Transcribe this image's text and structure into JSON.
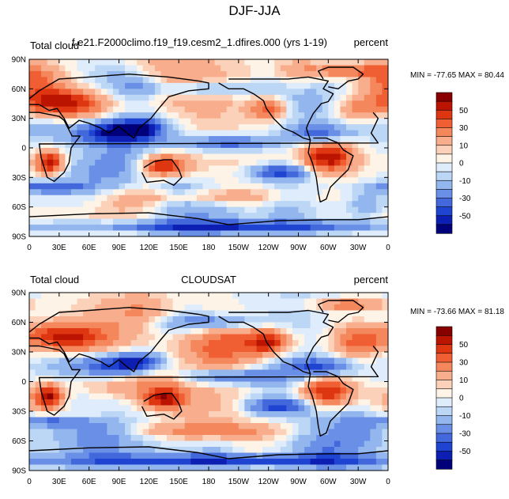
{
  "main_title": "DJF-JJA",
  "chart_data": [
    {
      "type": "heatmap",
      "left_title": "Total cloud",
      "center_title": "f.e21.F2000climo.f19_f19.cesm2_1.dfires.000 (yrs 1-19)",
      "right_title": "percent",
      "stats": "MIN = -77.65 MAX =  80.44",
      "lat_ticks": [
        "90N",
        "60N",
        "30N",
        "0",
        "30S",
        "60S",
        "90S"
      ],
      "lon_ticks": [
        "0",
        "30E",
        "60E",
        "90E",
        "120E",
        "150E",
        "180",
        "150W",
        "120W",
        "90W",
        "60W",
        "30W",
        "0"
      ],
      "colorbar_labels": [
        "50",
        "30",
        "10",
        "0",
        "-10",
        "-30",
        "-50"
      ],
      "lon_range": [
        0,
        360
      ],
      "lat_range": [
        -90,
        90
      ]
    },
    {
      "type": "heatmap",
      "left_title": "Total cloud",
      "center_title": "CLOUDSAT",
      "right_title": "percent",
      "stats": "MIN = -73.66 MAX =  81.18",
      "lat_ticks": [
        "90N",
        "60N",
        "30N",
        "0",
        "30S",
        "60S",
        "90S"
      ],
      "lon_ticks": [
        "0",
        "30E",
        "60E",
        "90E",
        "120E",
        "150E",
        "180",
        "150W",
        "120W",
        "90W",
        "60W",
        "30W",
        "0"
      ],
      "colorbar_labels": [
        "50",
        "30",
        "10",
        "0",
        "-10",
        "-30",
        "-50"
      ],
      "lon_range": [
        0,
        360
      ],
      "lat_range": [
        -90,
        90
      ]
    }
  ],
  "colorbar_colors": [
    "#880000",
    "#bb1400",
    "#dd3611",
    "#f05e33",
    "#f5875c",
    "#f8ae8c",
    "#fbd2b9",
    "#fdf3e6",
    "#dfecfb",
    "#bcd6f5",
    "#93b6ee",
    "#6a8fe6",
    "#4268dc",
    "#1f44d1",
    "#0d1fb3",
    "#00007a"
  ],
  "frame_color": "#000000"
}
